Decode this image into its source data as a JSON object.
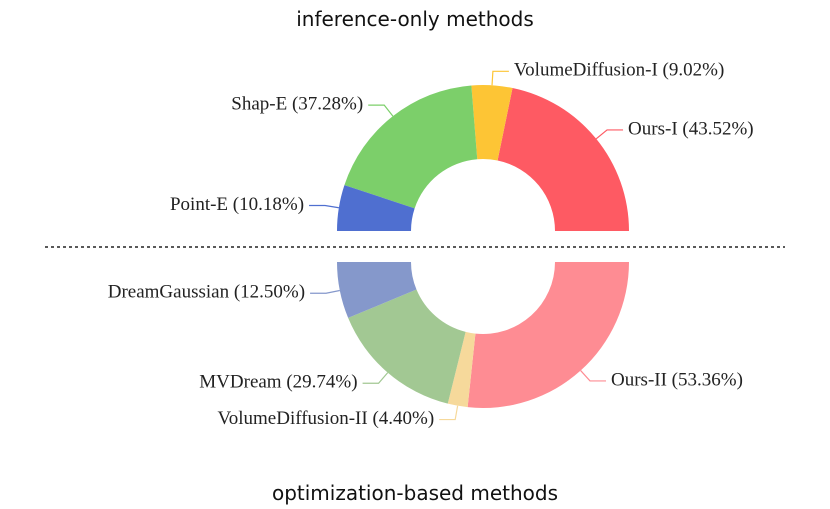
{
  "chart_data": [
    {
      "type": "donut",
      "title": "inference-only methods",
      "values": [
        43.52,
        9.02,
        37.28,
        10.18
      ],
      "value_labels": [
        "Ours-I (43.52%)",
        "VolumeDiffusion-I (9.02%)",
        "Shap-E (37.28%)",
        "Point-E (10.18%)"
      ],
      "colors": [
        "#fe5a63",
        "#fdc535",
        "#7ccf6a",
        "#4f6fd0"
      ]
    },
    {
      "type": "donut",
      "title": "optimization-based methods",
      "values": [
        53.36,
        4.4,
        29.74,
        12.5
      ],
      "value_labels": [
        "Ours-II (53.36%)",
        "VolumeDiffusion-II (4.40%)",
        "MVDream (29.74%)",
        "DreamGaussian (12.50%)"
      ],
      "colors": [
        "#fe8c93",
        "#f6d99b",
        "#a2c893",
        "#8598cb"
      ]
    }
  ]
}
